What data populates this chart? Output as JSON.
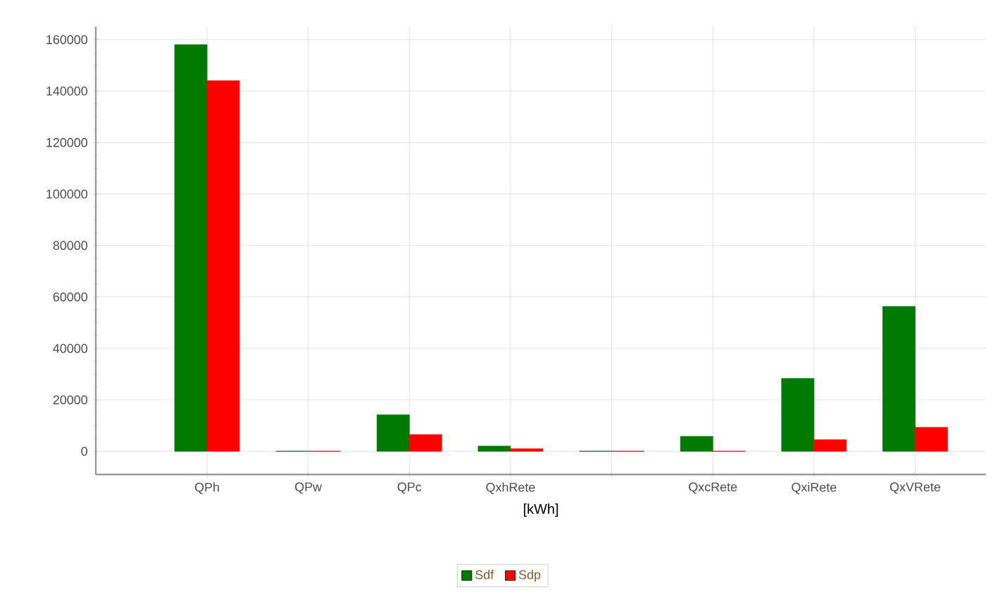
{
  "chart_data": {
    "type": "bar",
    "xlabel": "[kWh]",
    "categories": [
      "QPh",
      "QPw",
      "QPc",
      "QxhRete",
      null,
      "QxcRete",
      "QxiRete",
      "QxVRete"
    ],
    "series": [
      {
        "name": "Sdf",
        "color": "#007a00",
        "values": [
          158000,
          0,
          14200,
          2000,
          0,
          5800,
          28300,
          56300
        ]
      },
      {
        "name": "Sdp",
        "color": "#ff0000",
        "values": [
          144000,
          0,
          6500,
          1000,
          0,
          0,
          4500,
          9300
        ]
      }
    ],
    "ylim": [
      -9000,
      165000
    ],
    "yticks": [
      0,
      20000,
      40000,
      60000,
      80000,
      100000,
      120000,
      140000,
      160000
    ],
    "grid": true,
    "legend": "bottom"
  }
}
